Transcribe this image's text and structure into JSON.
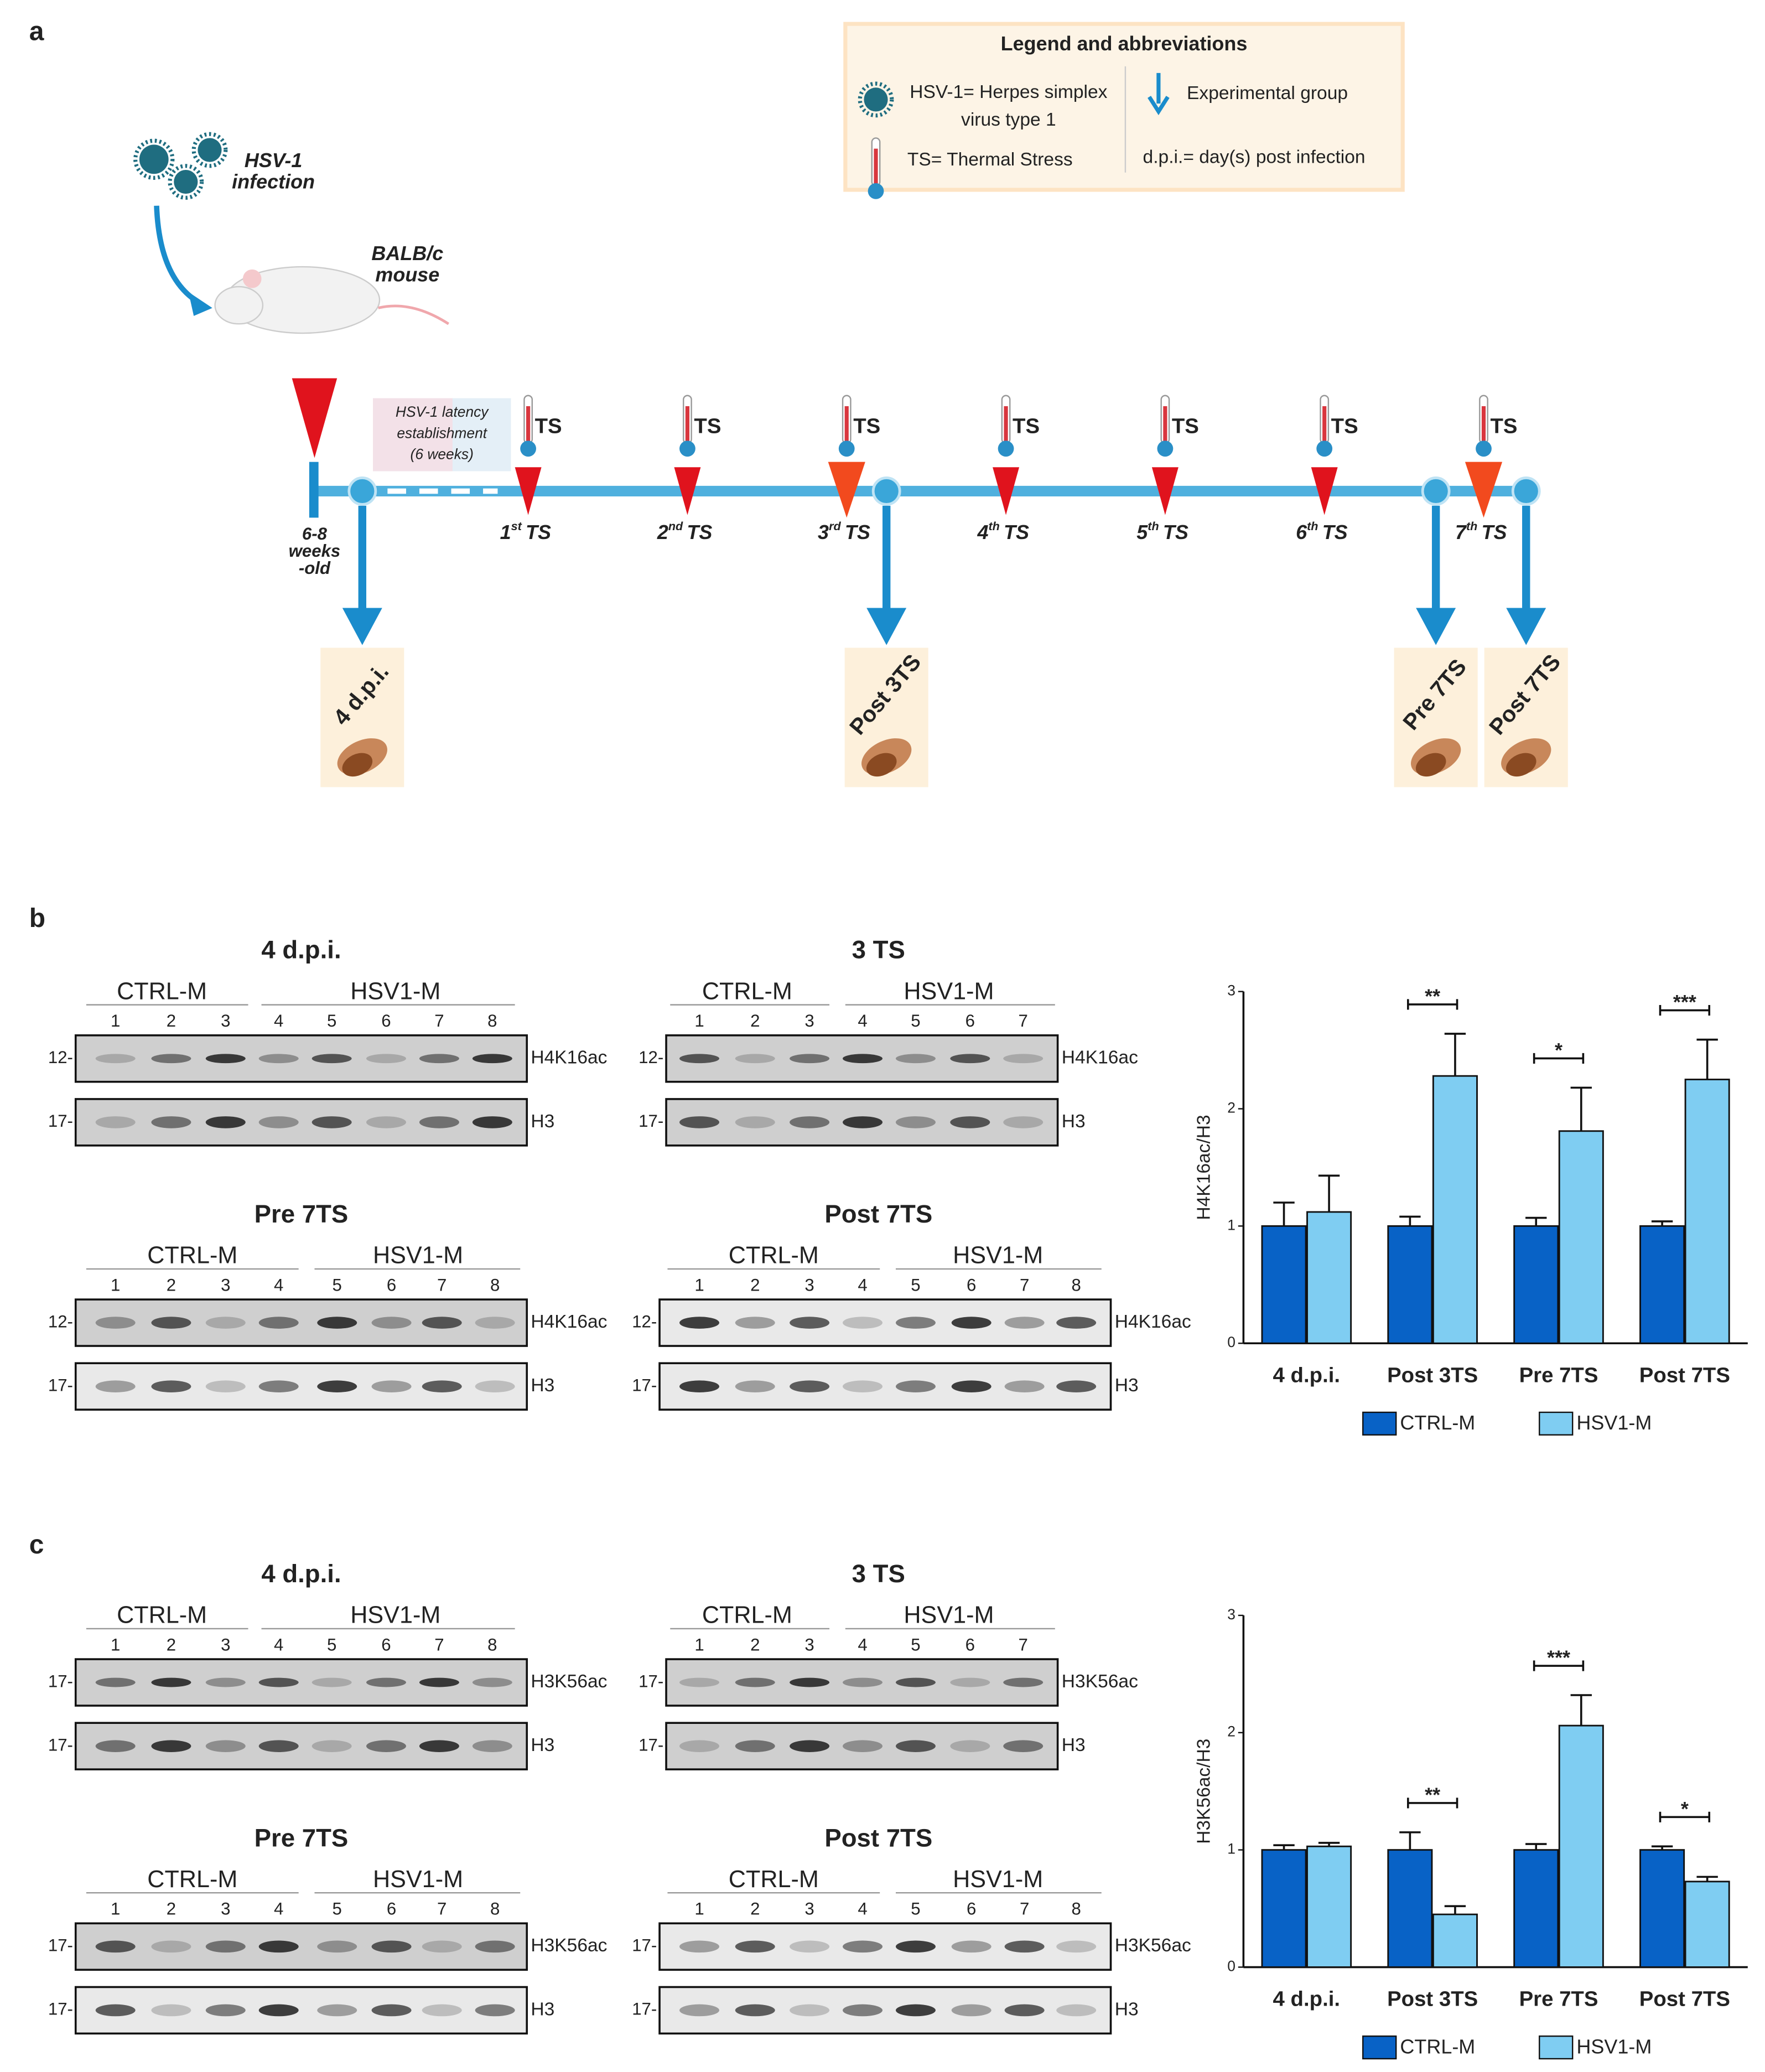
{
  "figure": {
    "panel_labels": [
      "a",
      "b",
      "c"
    ]
  },
  "panel_a": {
    "legend": {
      "title": "Legend and abbreviations",
      "hsv": [
        "HSV-1= Herpes simplex",
        "virus type 1"
      ],
      "ts": "TS= Thermal Stress",
      "group": "Experimental group",
      "dpi": "d.p.i.= day(s) post infection"
    },
    "infection": [
      "HSV-1",
      "infection"
    ],
    "mouse": [
      "BALB/c",
      "mouse"
    ],
    "age": [
      "6-8",
      "weeks",
      "-old"
    ],
    "latency": [
      "HSV-1 latency",
      "establishment",
      "(6 weeks)"
    ],
    "stress_marks": [
      "TS",
      "TS",
      "TS",
      "TS",
      "TS",
      "TS",
      "TS"
    ],
    "stress_events": [
      {
        "n": "1",
        "sup": "st",
        "label": "TS"
      },
      {
        "n": "2",
        "sup": "nd",
        "label": "TS"
      },
      {
        "n": "3",
        "sup": "rd",
        "label": "TS"
      },
      {
        "n": "4",
        "sup": "th",
        "label": "TS"
      },
      {
        "n": "5",
        "sup": "th",
        "label": "TS"
      },
      {
        "n": "6",
        "sup": "th",
        "label": "TS"
      },
      {
        "n": "7",
        "sup": "th",
        "label": "TS"
      }
    ],
    "groups": [
      "4 d.p.i.",
      "Post 3TS",
      "Pre 7TS",
      "Post 7TS"
    ]
  },
  "panel_b": {
    "blots": [
      {
        "title": "4 d.p.i.",
        "groups": [
          "CTRL-M",
          "HSV1-M"
        ],
        "lanes": [
          "1",
          "2",
          "3",
          "4",
          "5",
          "6",
          "7",
          "8"
        ],
        "rows": [
          {
            "marker": "12-",
            "label": "H4K16ac"
          },
          {
            "marker": "17-",
            "label": "H3"
          }
        ]
      },
      {
        "title": "3 TS",
        "groups": [
          "CTRL-M",
          "HSV1-M"
        ],
        "lanes": [
          "1",
          "2",
          "3",
          "4",
          "5",
          "6",
          "7"
        ],
        "rows": [
          {
            "marker": "12-",
            "label": "H4K16ac"
          },
          {
            "marker": "17-",
            "label": "H3"
          }
        ]
      },
      {
        "title": "Pre 7TS",
        "groups": [
          "CTRL-M",
          "HSV1-M"
        ],
        "lanes": [
          "1",
          "2",
          "3",
          "4",
          "5",
          "6",
          "7",
          "8"
        ],
        "rows": [
          {
            "marker": "12-",
            "label": "H4K16ac"
          },
          {
            "marker": "17-",
            "label": "H3"
          }
        ]
      },
      {
        "title": "Post 7TS",
        "groups": [
          "CTRL-M",
          "HSV1-M"
        ],
        "lanes": [
          "1",
          "2",
          "3",
          "4",
          "5",
          "6",
          "7",
          "8"
        ],
        "rows": [
          {
            "marker": "12-",
            "label": "H4K16ac"
          },
          {
            "marker": "17-",
            "label": "H3"
          }
        ]
      }
    ]
  },
  "panel_c": {
    "blots": [
      {
        "title": "4 d.p.i.",
        "groups": [
          "CTRL-M",
          "HSV1-M"
        ],
        "lanes": [
          "1",
          "2",
          "3",
          "4",
          "5",
          "6",
          "7",
          "8"
        ],
        "rows": [
          {
            "marker": "17-",
            "label": "H3K56ac"
          },
          {
            "marker": "17-",
            "label": "H3"
          }
        ]
      },
      {
        "title": "3 TS",
        "groups": [
          "CTRL-M",
          "HSV1-M"
        ],
        "lanes": [
          "1",
          "2",
          "3",
          "4",
          "5",
          "6",
          "7"
        ],
        "rows": [
          {
            "marker": "17-",
            "label": "H3K56ac"
          },
          {
            "marker": "17-",
            "label": "H3"
          }
        ]
      },
      {
        "title": "Pre 7TS",
        "groups": [
          "CTRL-M",
          "HSV1-M"
        ],
        "lanes": [
          "1",
          "2",
          "3",
          "4",
          "5",
          "6",
          "7",
          "8"
        ],
        "rows": [
          {
            "marker": "17-",
            "label": "H3K56ac"
          },
          {
            "marker": "17-",
            "label": "H3"
          }
        ]
      },
      {
        "title": "Post 7TS",
        "groups": [
          "CTRL-M",
          "HSV1-M"
        ],
        "lanes": [
          "1",
          "2",
          "3",
          "4",
          "5",
          "6",
          "7",
          "8"
        ],
        "rows": [
          {
            "marker": "17-",
            "label": "H3K56ac"
          },
          {
            "marker": "17-",
            "label": "H3"
          }
        ]
      }
    ]
  },
  "chart_data": [
    {
      "type": "bar",
      "ylabel": "H4K16ac/H3",
      "categories": [
        "4 d.p.i.",
        "Post 3TS",
        "Pre 7TS",
        "Post 7TS"
      ],
      "series": [
        {
          "name": "CTRL-M",
          "color": "#0862c6",
          "values": [
            1,
            1,
            1,
            1
          ],
          "errors": [
            0.2,
            0.08,
            0.07,
            0.04
          ]
        },
        {
          "name": "HSV1-M",
          "color": "#7fcdf2",
          "values": [
            1.12,
            2.28,
            1.81,
            2.25
          ],
          "errors": [
            0.31,
            0.36,
            0.37,
            0.34
          ]
        }
      ],
      "ylim": [
        0,
        3
      ],
      "yticks": [
        0,
        1,
        2,
        3
      ],
      "significance": [
        {
          "category": 1,
          "label": "**"
        },
        {
          "category": 2,
          "label": "*"
        },
        {
          "category": 3,
          "label": "***"
        }
      ]
    },
    {
      "type": "bar",
      "ylabel": "H3K56ac/H3",
      "categories": [
        "4 d.p.i.",
        "Post 3TS",
        "Pre 7TS",
        "Post 7TS"
      ],
      "series": [
        {
          "name": "CTRL-M",
          "color": "#0862c6",
          "values": [
            1,
            1,
            1,
            1
          ],
          "errors": [
            0.04,
            0.15,
            0.05,
            0.03
          ]
        },
        {
          "name": "HSV1-M",
          "color": "#7fcdf2",
          "values": [
            1.03,
            0.45,
            2.06,
            0.73
          ],
          "errors": [
            0.03,
            0.07,
            0.26,
            0.04
          ]
        }
      ],
      "ylim": [
        0,
        3
      ],
      "yticks": [
        0,
        1,
        2,
        3
      ],
      "significance": [
        {
          "category": 1,
          "label": "**"
        },
        {
          "category": 2,
          "label": "***"
        },
        {
          "category": 3,
          "label": "*"
        }
      ]
    }
  ]
}
